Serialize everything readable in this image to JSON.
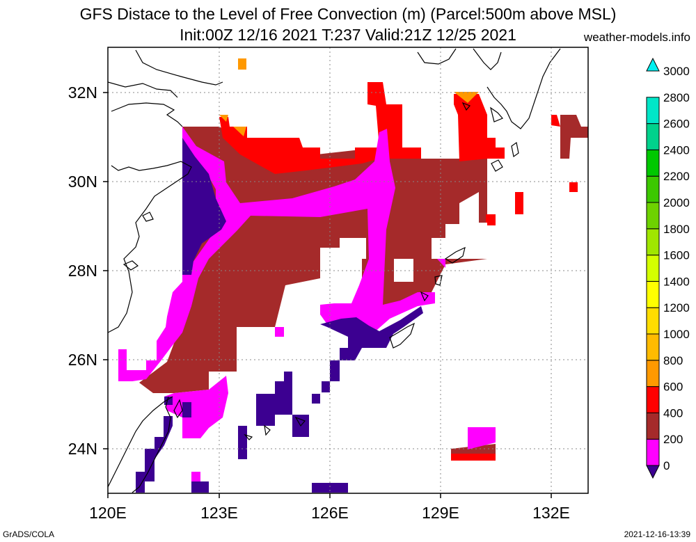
{
  "header": {
    "title_line1": "GFS Distace to the Level of Free Convection (m) (Parcel:500m above MSL)",
    "title_line2": "Init:00Z 12/16 2021 T:237 Valid:21Z 12/25 2021",
    "site": "weather-models.info"
  },
  "map": {
    "lon_labels": [
      "120E",
      "123E",
      "126E",
      "129E",
      "132E"
    ],
    "lat_labels": [
      "32N",
      "30N",
      "28N",
      "26N",
      "24N"
    ]
  },
  "colorbar": {
    "labels": [
      "0",
      "200",
      "400",
      "600",
      "800",
      "1000",
      "1200",
      "1400",
      "1600",
      "1800",
      "2000",
      "2200",
      "2400",
      "2600",
      "2800",
      "3000"
    ],
    "colors": [
      "#3c0091",
      "#ff00ff",
      "#a52a2a",
      "#ff0000",
      "#ff9900",
      "#ffbb00",
      "#ffdd00",
      "#ffff00",
      "#d4ff00",
      "#a0e600",
      "#6ed200",
      "#3cc800",
      "#00c800",
      "#00d28c",
      "#00e6c8",
      "#00f0f0"
    ]
  },
  "fields": {
    "colors": {
      "dark": "#3c0091",
      "magenta": "#ff00ff",
      "brown": "#a52a2a",
      "red": "#ff0000",
      "orange": "#ff9900"
    }
  },
  "footer": {
    "left": "GrADS/COLA",
    "right": "2021-12-16-13:39"
  }
}
